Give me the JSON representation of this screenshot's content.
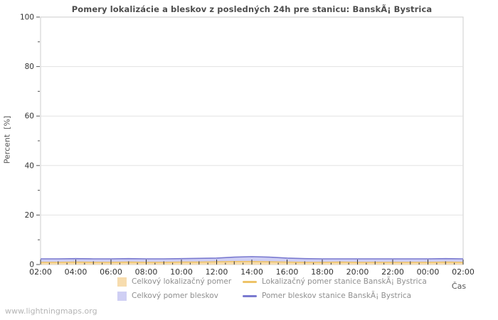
{
  "page": {
    "watermark": "www.lightningmaps.org"
  },
  "chart_data": {
    "type": "area",
    "title": "Pomery lokalizácie a bleskov z posledných 24h pre stanicu: BanskÃ¡ Bystrica",
    "xlabel": "Čas",
    "ylabel": "Percent  [%]",
    "ylim": [
      0,
      100
    ],
    "y_major_ticks": [
      0,
      20,
      40,
      60,
      80,
      100
    ],
    "y_minor_ticks": [
      10,
      30,
      50,
      70,
      90
    ],
    "grid": "horizontal-major-only",
    "legend_position": "bottom",
    "x": [
      "02:00",
      "03:00",
      "04:00",
      "05:00",
      "06:00",
      "07:00",
      "08:00",
      "09:00",
      "10:00",
      "11:00",
      "12:00",
      "13:00",
      "14:00",
      "15:00",
      "16:00",
      "17:00",
      "18:00",
      "19:00",
      "20:00",
      "21:00",
      "22:00",
      "23:00",
      "00:00",
      "01:00",
      "02:00"
    ],
    "x_major_label_every": 2,
    "series": [
      {
        "name": "Celkový lokalizačný pomer",
        "kind": "area",
        "color": "#f7dcae",
        "values": [
          0.9,
          0.9,
          1.0,
          0.9,
          0.9,
          1.0,
          0.9,
          0.9,
          1.0,
          1.0,
          1.1,
          1.2,
          1.2,
          1.1,
          1.0,
          0.9,
          0.9,
          1.0,
          0.9,
          0.9,
          0.9,
          0.9,
          0.9,
          1.0,
          0.9
        ]
      },
      {
        "name": "Lokalizačný pomer stanice BanskÃ¡ Bystrica",
        "kind": "line",
        "color": "#eec368",
        "values": [
          0.9,
          0.9,
          1.0,
          0.9,
          0.9,
          1.0,
          0.9,
          0.9,
          1.0,
          1.0,
          1.1,
          1.2,
          1.2,
          1.1,
          1.0,
          0.9,
          0.9,
          1.0,
          0.9,
          0.9,
          0.9,
          0.9,
          0.9,
          1.0,
          0.9
        ]
      },
      {
        "name": "Celkový pomer bleskov",
        "kind": "area",
        "color": "#cfcff4",
        "values": [
          2.3,
          2.3,
          2.4,
          2.3,
          2.3,
          2.4,
          2.3,
          2.3,
          2.4,
          2.5,
          2.6,
          3.0,
          3.2,
          3.0,
          2.6,
          2.4,
          2.3,
          2.3,
          2.3,
          2.3,
          2.3,
          2.3,
          2.3,
          2.4,
          2.3
        ]
      },
      {
        "name": "Pomer bleskov stanice BanskÃ¡ Bystrica",
        "kind": "line",
        "color": "#7a7ad0",
        "values": [
          2.3,
          2.3,
          2.4,
          2.3,
          2.3,
          2.4,
          2.3,
          2.3,
          2.4,
          2.5,
          2.6,
          3.0,
          3.2,
          3.0,
          2.6,
          2.4,
          2.3,
          2.3,
          2.3,
          2.3,
          2.3,
          2.3,
          2.3,
          2.4,
          2.3
        ]
      }
    ],
    "draw_order": [
      2,
      0,
      1,
      3
    ],
    "colors": {
      "plot_border": "#cccccc",
      "grid": "#e3e3e3",
      "tick": "#333333",
      "tick_label": "#333333",
      "title": "#4d4d4d"
    }
  }
}
